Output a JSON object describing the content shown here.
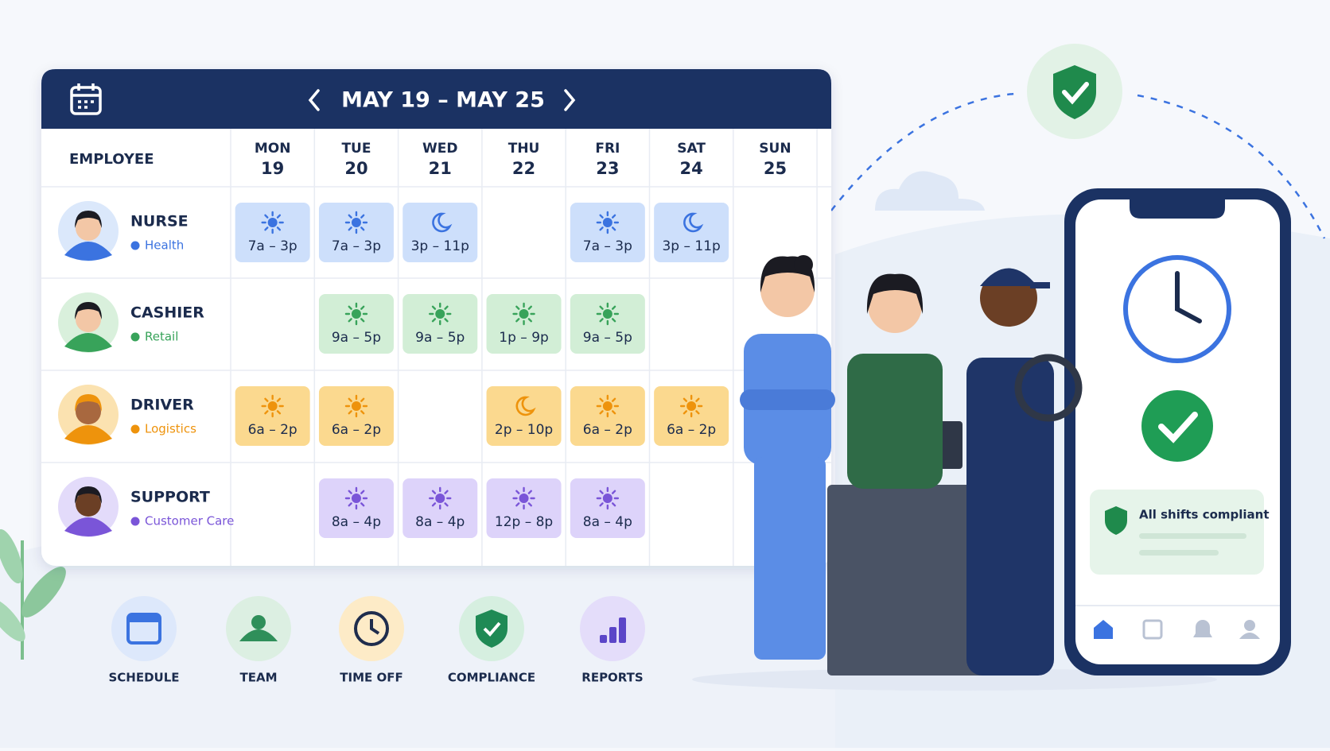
{
  "header": {
    "title": "MAY 19 – MAY 25"
  },
  "table": {
    "employee_header": "EMPLOYEE",
    "days": [
      {
        "name": "MON",
        "date": "19"
      },
      {
        "name": "TUE",
        "date": "20"
      },
      {
        "name": "WED",
        "date": "21"
      },
      {
        "name": "THU",
        "date": "22"
      },
      {
        "name": "FRI",
        "date": "23"
      },
      {
        "name": "SAT",
        "date": "24"
      },
      {
        "name": "SUN",
        "date": "25"
      }
    ],
    "rows": [
      {
        "role": "NURSE",
        "dept": "Health",
        "color": "#3b73e0",
        "fill": "#cddffb",
        "avatar": "#dbe8fb",
        "shifts": [
          {
            "time": "7a – 3p",
            "icon": "sun"
          },
          {
            "time": "7a – 3p",
            "icon": "sun"
          },
          {
            "time": "3p – 11p",
            "icon": "moon"
          },
          null,
          {
            "time": "7a – 3p",
            "icon": "sun"
          },
          {
            "time": "3p – 11p",
            "icon": "moon"
          },
          null
        ]
      },
      {
        "role": "CASHIER",
        "dept": "Retail",
        "color": "#38a35a",
        "fill": "#d2eed6",
        "avatar": "#d9f0dc",
        "shifts": [
          null,
          {
            "time": "9a – 5p",
            "icon": "sun"
          },
          {
            "time": "9a – 5p",
            "icon": "sun"
          },
          {
            "time": "1p – 9p",
            "icon": "sun"
          },
          {
            "time": "9a – 5p",
            "icon": "sun"
          },
          null,
          null
        ]
      },
      {
        "role": "DRIVER",
        "dept": "Logistics",
        "color": "#ee930c",
        "fill": "#fbd98f",
        "avatar": "#fbe2b0",
        "shifts": [
          {
            "time": "6a – 2p",
            "icon": "sun"
          },
          {
            "time": "6a – 2p",
            "icon": "sun"
          },
          null,
          {
            "time": "2p – 10p",
            "icon": "moon"
          },
          {
            "time": "6a – 2p",
            "icon": "sun"
          },
          {
            "time": "6a – 2p",
            "icon": "sun"
          },
          null
        ]
      },
      {
        "role": "SUPPORT",
        "dept": "Customer Care",
        "color": "#7a55d8",
        "fill": "#ddd3fa",
        "avatar": "#e3dbfa",
        "shifts": [
          null,
          {
            "time": "8a – 4p",
            "icon": "sun"
          },
          {
            "time": "8a – 4p",
            "icon": "sun"
          },
          {
            "time": "12p – 8p",
            "icon": "sun"
          },
          {
            "time": "8a – 4p",
            "icon": "sun"
          },
          null,
          null
        ]
      }
    ]
  },
  "nav": [
    {
      "label": "SCHEDULE",
      "color": "#3b73e0",
      "bg": "#dde8fb"
    },
    {
      "label": "TEAM",
      "color": "#2f8f5a",
      "bg": "#dcefe2"
    },
    {
      "label": "TIME OFF",
      "color": "#1f2d4d",
      "bg": "#fdebc7"
    },
    {
      "label": "COMPLIANCE",
      "color": "#1f8a55",
      "bg": "#d6efe0"
    },
    {
      "label": "REPORTS",
      "color": "#5b45c8",
      "bg": "#e4ddfa"
    }
  ],
  "phone": {
    "status": "All shifts compliant"
  }
}
